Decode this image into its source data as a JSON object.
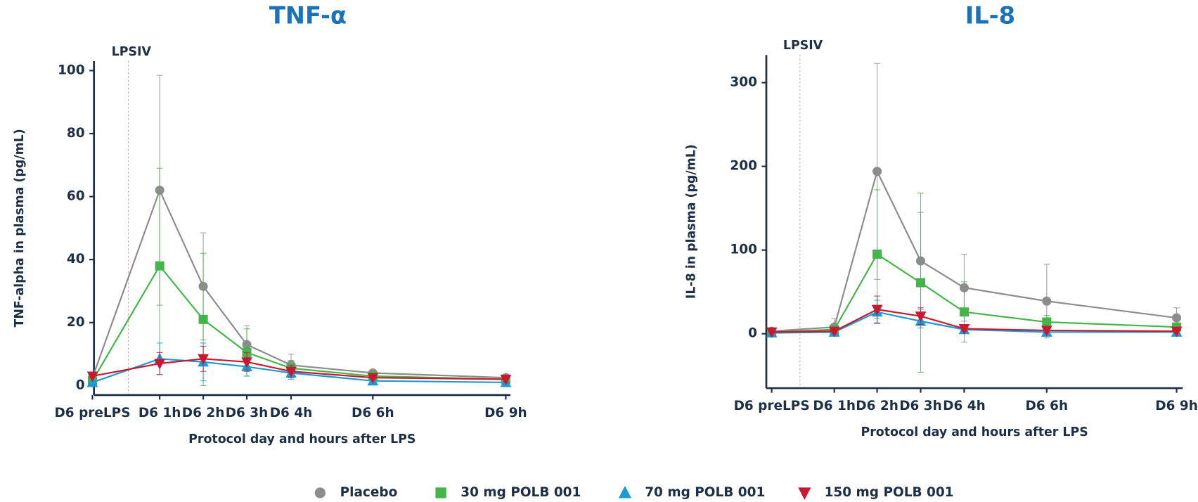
{
  "chart_data": [
    {
      "type": "line",
      "title": "TNF-α",
      "annotation": "LPSIV",
      "x_label": "Protocol day and hours after LPS",
      "y_label": "TNF-alpha in plasma (pg/mL)",
      "categories": [
        "D6 preLPS",
        "D6 1h",
        "D6 2h",
        "D6 3h",
        "D6 4h",
        "D6 6h",
        "D6 9h"
      ],
      "ylim": [
        -3,
        103
      ],
      "yticks": [
        0,
        20,
        40,
        60,
        80,
        100
      ],
      "series": [
        {
          "name": "Placebo",
          "color": "#8c8c8c",
          "marker": "circle",
          "values": [
            2.5,
            62,
            31.5,
            13,
            6.5,
            4,
            2.5
          ],
          "errors": [
            1,
            36.5,
            17,
            6,
            3.5,
            1,
            1
          ]
        },
        {
          "name": "30 mg POLB 001",
          "color": "#44b649",
          "marker": "square",
          "values": [
            1.5,
            38,
            21,
            10.5,
            5.5,
            3,
            2
          ],
          "errors": [
            1,
            31,
            21,
            7.5,
            2.5,
            1,
            1
          ]
        },
        {
          "name": "70 mg POLB 001",
          "color": "#1b9ad6",
          "marker": "triangle-up",
          "values": [
            1,
            8.5,
            7.5,
            6,
            4,
            1.5,
            1
          ],
          "errors": [
            0.5,
            5,
            6,
            3,
            2,
            0.5,
            0.5
          ]
        },
        {
          "name": "150 mg POLB 001",
          "color": "#c8192e",
          "marker": "triangle-down",
          "values": [
            3,
            7,
            8.5,
            7.5,
            4.5,
            2.5,
            2
          ],
          "errors": [
            0.5,
            3.5,
            4,
            3,
            2,
            0.5,
            1
          ]
        }
      ]
    },
    {
      "type": "line",
      "title": "IL-8",
      "annotation": "LPSIV",
      "x_label": "Protocol day and hours after LPS",
      "y_label": "IL-8 in plasma (pg/mL)",
      "categories": [
        "D6 preLPS",
        "D6 1h",
        "D6 2h",
        "D6 3h",
        "D6 4h",
        "D6 6h",
        "D6 9h"
      ],
      "ylim": [
        -65,
        333
      ],
      "yticks": [
        0,
        100,
        200,
        300
      ],
      "series": [
        {
          "color": "#8c8c8c",
          "marker": "circle",
          "values": [
            3,
            8,
            194,
            87,
            55,
            39,
            19
          ],
          "errors": [
            2,
            10,
            129,
            58,
            40,
            44,
            12
          ]
        },
        {
          "color": "#44b649",
          "marker": "square",
          "values": [
            2,
            5,
            95,
            61,
            26,
            14,
            8
          ],
          "errors": [
            1,
            5,
            77,
            107,
            36,
            8,
            3
          ]
        },
        {
          "color": "#1b9ad6",
          "marker": "triangle-up",
          "values": [
            1,
            2,
            26,
            15,
            5,
            2,
            2
          ],
          "errors": [
            1,
            2,
            14,
            8,
            4,
            3,
            1
          ]
        },
        {
          "color": "#c8192e",
          "marker": "triangle-down",
          "values": [
            2,
            3,
            29,
            21,
            6,
            4,
            3
          ],
          "errors": [
            1,
            2,
            16,
            10,
            3,
            2,
            1
          ]
        }
      ]
    }
  ]
}
